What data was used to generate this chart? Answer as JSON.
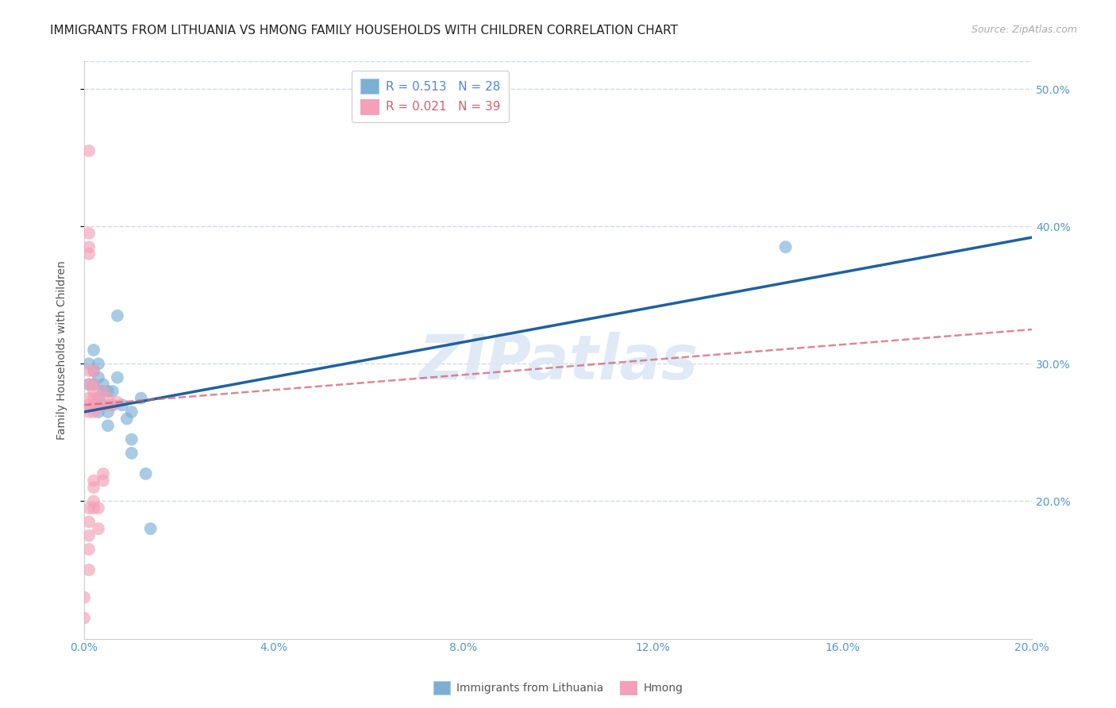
{
  "title": "IMMIGRANTS FROM LITHUANIA VS HMONG FAMILY HOUSEHOLDS WITH CHILDREN CORRELATION CHART",
  "source": "Source: ZipAtlas.com",
  "ylabel": "Family Households with Children",
  "watermark": "ZIPatlas",
  "xlim": [
    0.0,
    0.2
  ],
  "ylim": [
    0.1,
    0.52
  ],
  "yticks": [
    0.2,
    0.3,
    0.4,
    0.5
  ],
  "xticks": [
    0.0,
    0.04,
    0.08,
    0.12,
    0.16,
    0.2
  ],
  "blue_scatter": [
    [
      0.001,
      0.3
    ],
    [
      0.001,
      0.285
    ],
    [
      0.002,
      0.295
    ],
    [
      0.002,
      0.31
    ],
    [
      0.002,
      0.285
    ],
    [
      0.003,
      0.3
    ],
    [
      0.003,
      0.29
    ],
    [
      0.003,
      0.275
    ],
    [
      0.003,
      0.265
    ],
    [
      0.004,
      0.285
    ],
    [
      0.004,
      0.28
    ],
    [
      0.004,
      0.27
    ],
    [
      0.005,
      0.28
    ],
    [
      0.005,
      0.265
    ],
    [
      0.005,
      0.255
    ],
    [
      0.006,
      0.28
    ],
    [
      0.006,
      0.27
    ],
    [
      0.007,
      0.335
    ],
    [
      0.007,
      0.29
    ],
    [
      0.008,
      0.27
    ],
    [
      0.009,
      0.26
    ],
    [
      0.01,
      0.245
    ],
    [
      0.01,
      0.265
    ],
    [
      0.01,
      0.235
    ],
    [
      0.012,
      0.275
    ],
    [
      0.013,
      0.22
    ],
    [
      0.014,
      0.18
    ],
    [
      0.148,
      0.385
    ]
  ],
  "pink_scatter": [
    [
      0.0,
      0.115
    ],
    [
      0.0,
      0.13
    ],
    [
      0.001,
      0.15
    ],
    [
      0.001,
      0.165
    ],
    [
      0.001,
      0.175
    ],
    [
      0.001,
      0.185
    ],
    [
      0.001,
      0.195
    ],
    [
      0.001,
      0.265
    ],
    [
      0.001,
      0.27
    ],
    [
      0.001,
      0.275
    ],
    [
      0.001,
      0.285
    ],
    [
      0.001,
      0.295
    ],
    [
      0.001,
      0.38
    ],
    [
      0.001,
      0.385
    ],
    [
      0.001,
      0.395
    ],
    [
      0.002,
      0.265
    ],
    [
      0.002,
      0.27
    ],
    [
      0.002,
      0.275
    ],
    [
      0.002,
      0.28
    ],
    [
      0.002,
      0.285
    ],
    [
      0.002,
      0.295
    ],
    [
      0.002,
      0.2
    ],
    [
      0.002,
      0.21
    ],
    [
      0.002,
      0.195
    ],
    [
      0.002,
      0.215
    ],
    [
      0.003,
      0.27
    ],
    [
      0.003,
      0.275
    ],
    [
      0.003,
      0.18
    ],
    [
      0.003,
      0.195
    ],
    [
      0.003,
      0.268
    ],
    [
      0.004,
      0.27
    ],
    [
      0.004,
      0.28
    ],
    [
      0.004,
      0.215
    ],
    [
      0.004,
      0.22
    ],
    [
      0.005,
      0.27
    ],
    [
      0.005,
      0.275
    ],
    [
      0.006,
      0.27
    ],
    [
      0.007,
      0.272
    ],
    [
      0.001,
      0.455
    ]
  ],
  "blue_line": {
    "x0": 0.0,
    "y0": 0.265,
    "x1": 0.2,
    "y1": 0.392
  },
  "pink_line": {
    "x0": 0.0,
    "y0": 0.27,
    "x1": 0.2,
    "y1": 0.325
  },
  "scatter_blue_color": "#7bafd4",
  "scatter_pink_color": "#f4a0b8",
  "line_blue_color": "#2060a0",
  "line_pink_color": "#d06070",
  "axis_color": "#5599cc",
  "grid_color": "#d0d8e8",
  "background_color": "#ffffff",
  "title_fontsize": 11,
  "axis_label_fontsize": 10,
  "tick_fontsize": 10,
  "legend_fontsize": 11,
  "legend_text_blue": "#5588cc",
  "legend_text_pink": "#d06070"
}
